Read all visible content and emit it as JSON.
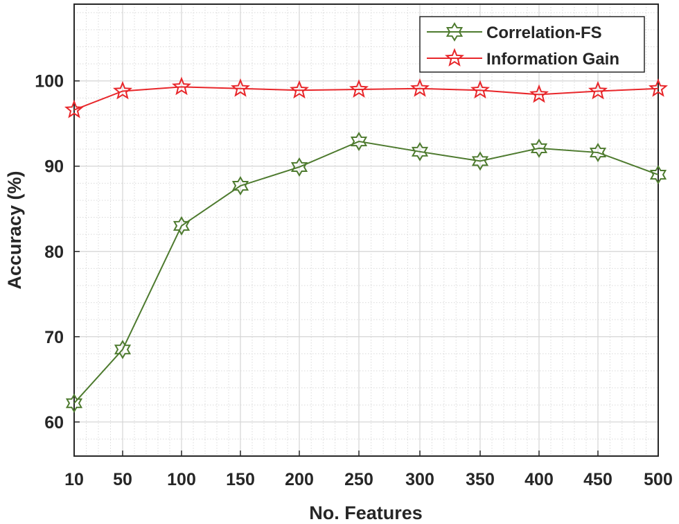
{
  "chart_data": {
    "type": "line",
    "title": "",
    "xlabel": "No. Features",
    "ylabel": "Accuracy (%)",
    "x": [
      10,
      50,
      100,
      150,
      200,
      250,
      300,
      350,
      400,
      450,
      500
    ],
    "x_tick_labels": [
      "10",
      "50",
      "100",
      "150",
      "200",
      "250",
      "300",
      "350",
      "400",
      "450",
      "500"
    ],
    "y_ticks": [
      60,
      70,
      80,
      90,
      100
    ],
    "y_tick_labels": [
      "60",
      "70",
      "80",
      "90",
      "100"
    ],
    "xlim": [
      10,
      500
    ],
    "ylim": [
      56,
      109
    ],
    "grid": true,
    "minor_grid": true,
    "legend_position": "top-right",
    "series": [
      {
        "name": "Correlation-FS",
        "color": "#4d7a2e",
        "marker": "hexagram",
        "values": [
          62.2,
          68.5,
          83.0,
          87.7,
          89.9,
          92.9,
          91.7,
          90.6,
          92.1,
          91.6,
          89.0
        ]
      },
      {
        "name": "Information Gain",
        "color": "#e8262a",
        "marker": "pentagram",
        "values": [
          96.6,
          98.8,
          99.3,
          99.1,
          98.9,
          99.0,
          99.1,
          98.9,
          98.4,
          98.8,
          99.1
        ]
      }
    ]
  }
}
